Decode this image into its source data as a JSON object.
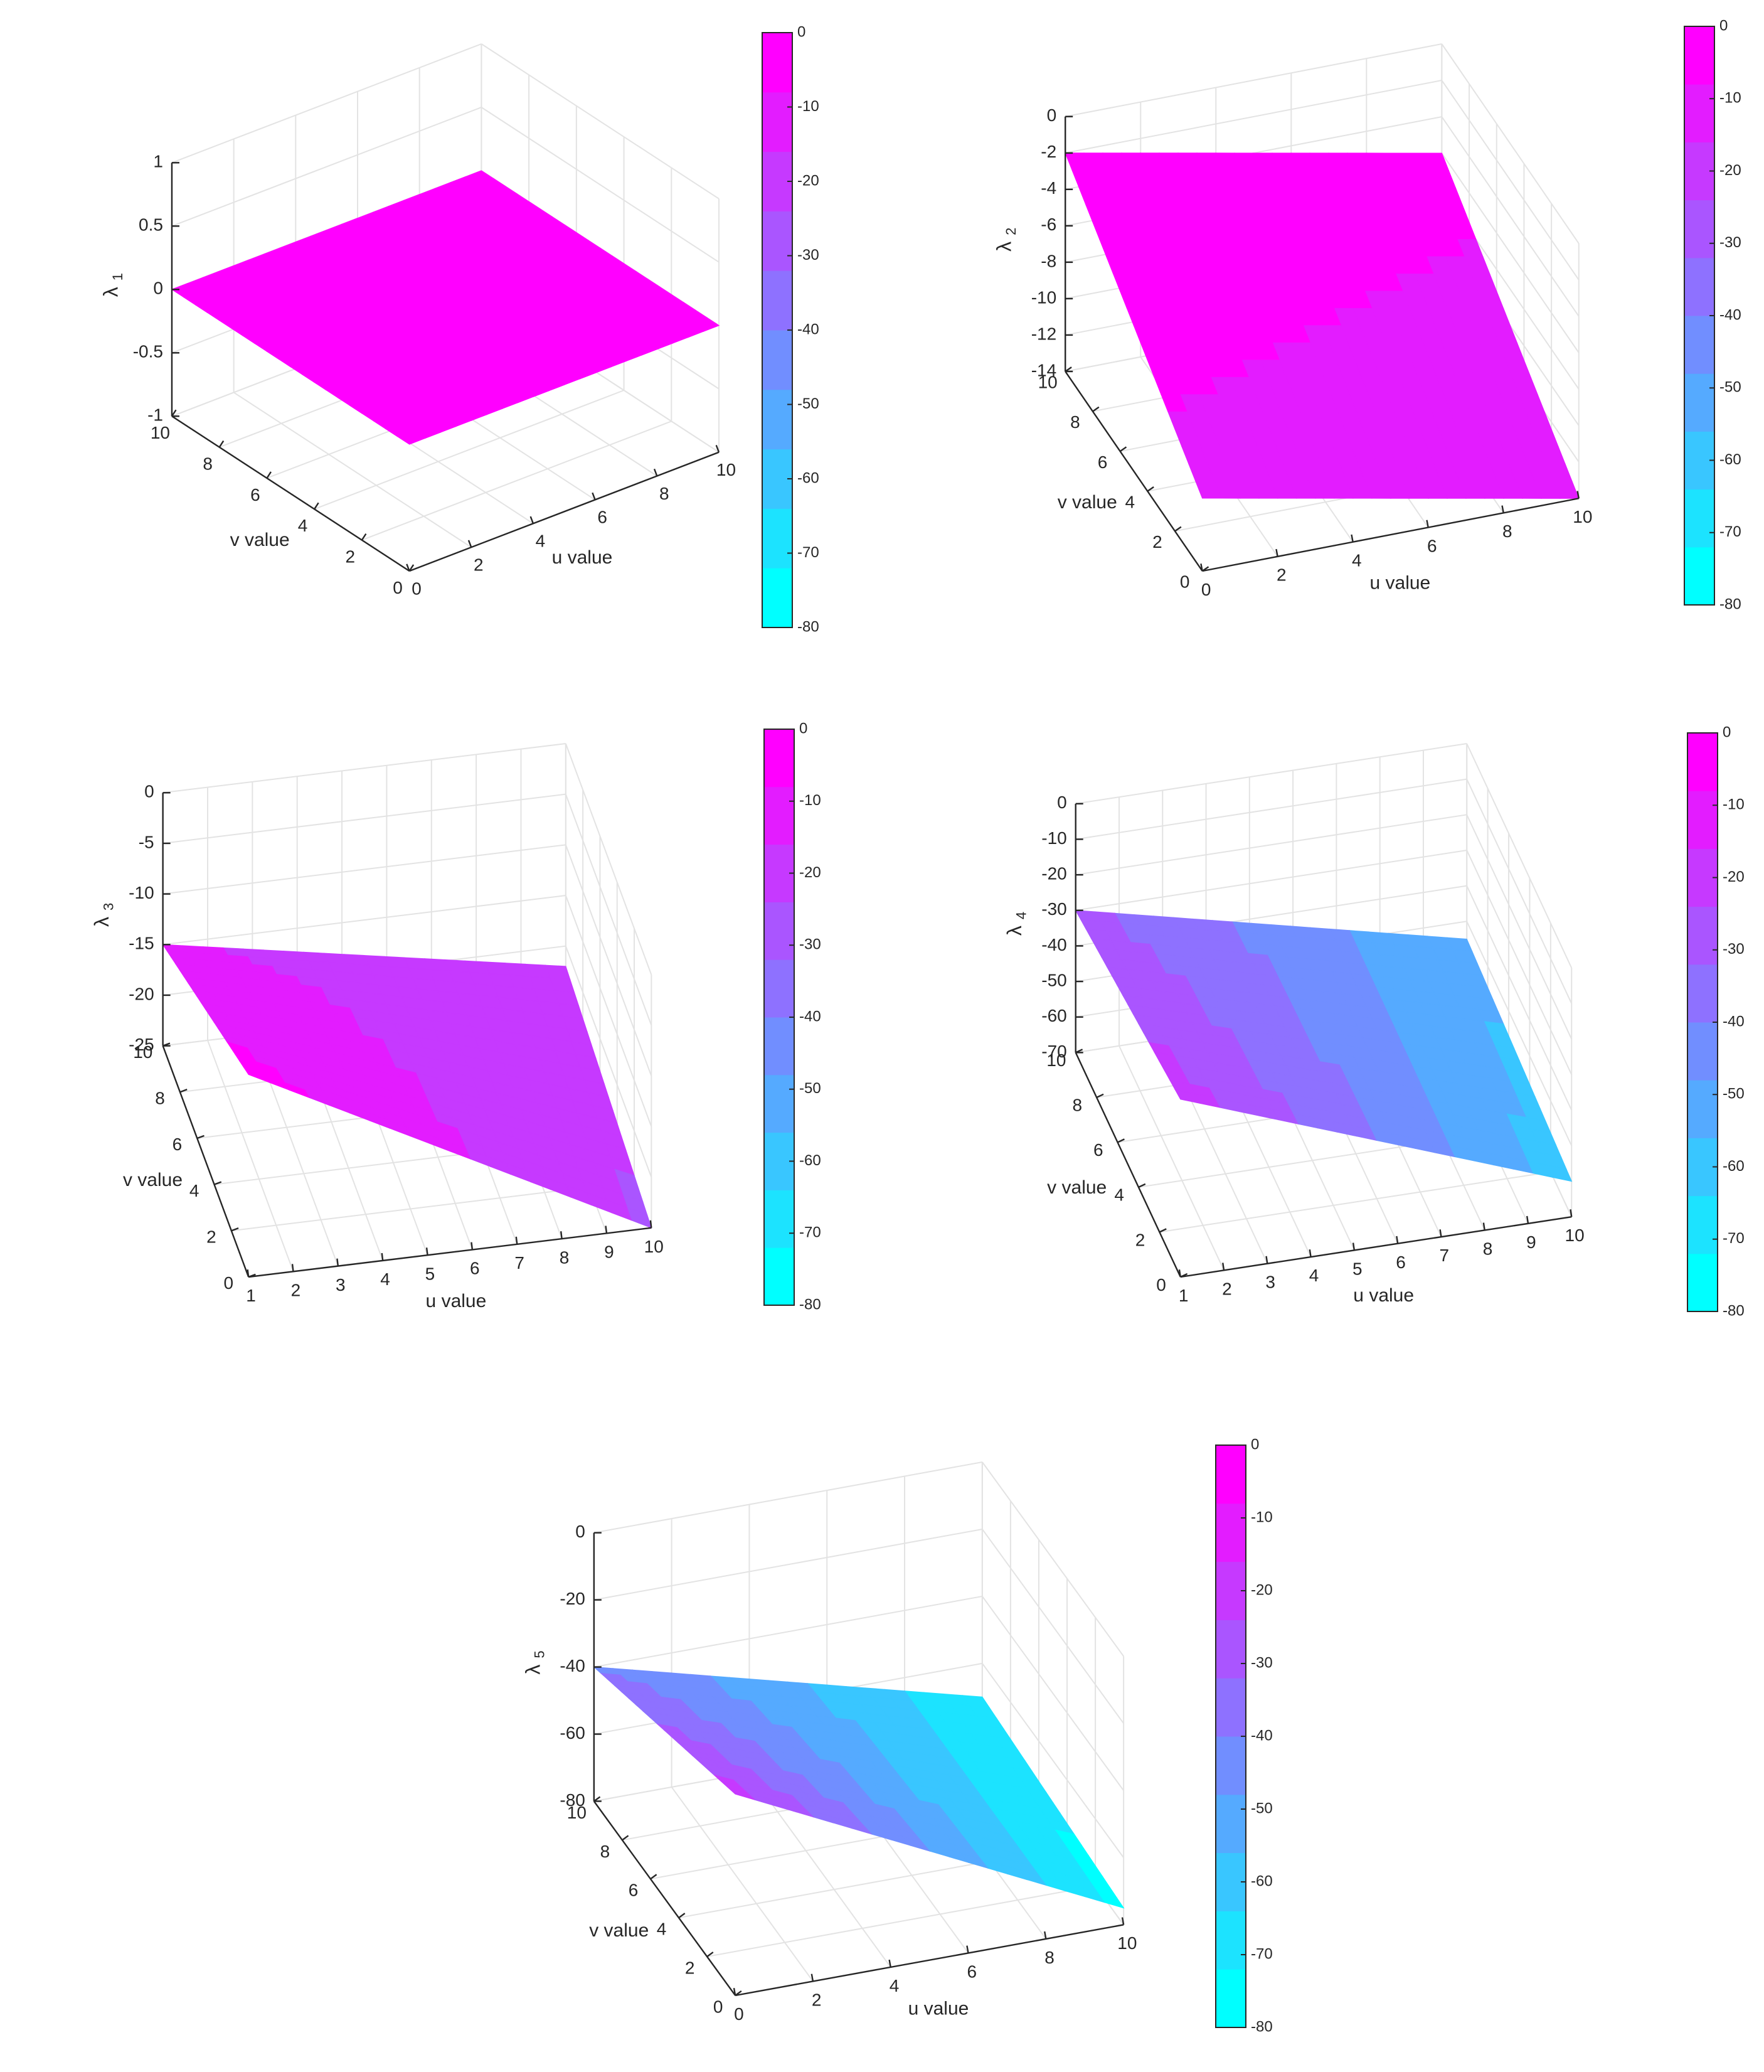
{
  "colormap": {
    "name": "cool",
    "levels": 10,
    "low_color": "#00ffff",
    "high_color": "#ff00ff"
  },
  "chart_data": [
    {
      "id": "p1",
      "type": "surface",
      "zlabel_main": "λ",
      "zlabel_sub": "1",
      "xlabel": "u value",
      "ylabel": "v value",
      "xlim": [
        0,
        10
      ],
      "ylim": [
        0,
        10
      ],
      "zlim": [
        -1,
        1
      ],
      "xticks": [
        0,
        2,
        4,
        6,
        8,
        10
      ],
      "yticks": [
        0,
        2,
        4,
        6,
        8,
        10
      ],
      "zticks": [
        -1,
        -0.5,
        0,
        0.5,
        1
      ],
      "view": {
        "az": -37.5,
        "el": 30
      },
      "surface": {
        "kind": "plane",
        "z00": 0,
        "z10": 0,
        "z01": 0,
        "z11": 0
      },
      "colorbar": {
        "limits": [
          -80,
          0
        ],
        "ticks": [
          0,
          -10,
          -20,
          -30,
          -40,
          -50,
          -60,
          -70,
          -80
        ]
      }
    },
    {
      "id": "p2",
      "type": "surface",
      "zlabel_main": "λ",
      "zlabel_sub": "2",
      "xlabel": "u value",
      "ylabel": "v value",
      "xlim": [
        0,
        10
      ],
      "ylim": [
        0,
        10
      ],
      "zlim": [
        -14,
        0
      ],
      "xticks": [
        0,
        2,
        4,
        6,
        8,
        10
      ],
      "yticks": [
        0,
        2,
        4,
        6,
        8,
        10
      ],
      "zticks": [
        -14,
        -12,
        -10,
        -8,
        -6,
        -4,
        -2,
        0
      ],
      "view": {
        "az": -20,
        "el": 32
      },
      "surface": {
        "kind": "plane",
        "z00": -10,
        "z10": -14,
        "z01": -2,
        "z11": -6
      },
      "colorbar": {
        "limits": [
          -80,
          0
        ],
        "ticks": [
          0,
          -10,
          -20,
          -30,
          -40,
          -50,
          -60,
          -70,
          -80
        ]
      }
    },
    {
      "id": "p3",
      "type": "surface",
      "zlabel_main": "λ",
      "zlabel_sub": "3",
      "xlabel": "u value",
      "ylabel": "v value",
      "xlim": [
        1,
        10
      ],
      "ylim": [
        0,
        10
      ],
      "zlim": [
        -25,
        0
      ],
      "xticks": [
        1,
        2,
        3,
        4,
        5,
        6,
        7,
        8,
        9,
        10
      ],
      "yticks": [
        0,
        2,
        4,
        6,
        8,
        10
      ],
      "zticks": [
        -25,
        -20,
        -15,
        -10,
        -5,
        0
      ],
      "view": {
        "az": -12,
        "el": 35
      },
      "surface": {
        "kind": "plane",
        "z00": -5,
        "z10": -25,
        "z01": -15,
        "z11": -22
      },
      "colorbar": {
        "limits": [
          -80,
          0
        ],
        "ticks": [
          0,
          -10,
          -20,
          -30,
          -40,
          -50,
          -60,
          -70,
          -80
        ]
      }
    },
    {
      "id": "p4",
      "type": "surface",
      "zlabel_main": "λ",
      "zlabel_sub": "4",
      "xlabel": "u value",
      "ylabel": "v value",
      "xlim": [
        1,
        10
      ],
      "ylim": [
        0,
        10
      ],
      "zlim": [
        -70,
        0
      ],
      "xticks": [
        1,
        2,
        3,
        4,
        5,
        6,
        7,
        8,
        9,
        10
      ],
      "yticks": [
        0,
        2,
        4,
        6,
        8,
        10
      ],
      "zticks": [
        -70,
        -60,
        -50,
        -40,
        -30,
        -20,
        -10,
        0
      ],
      "view": {
        "az": -15,
        "el": 35
      },
      "surface": {
        "kind": "plane",
        "z00": -20,
        "z10": -60,
        "z01": -30,
        "z11": -55
      },
      "colorbar": {
        "limits": [
          -80,
          0
        ],
        "ticks": [
          0,
          -10,
          -20,
          -30,
          -40,
          -50,
          -60,
          -70,
          -80
        ]
      }
    },
    {
      "id": "p5",
      "type": "surface",
      "zlabel_main": "λ",
      "zlabel_sub": "5",
      "xlabel": "u value",
      "ylabel": "v value",
      "xlim": [
        0,
        10
      ],
      "ylim": [
        0,
        10
      ],
      "zlim": [
        -80,
        0
      ],
      "xticks": [
        0,
        2,
        4,
        6,
        8,
        10
      ],
      "yticks": [
        0,
        2,
        4,
        6,
        8,
        10
      ],
      "zticks": [
        -80,
        -60,
        -40,
        -20,
        0
      ],
      "view": {
        "az": -20,
        "el": 30
      },
      "surface": {
        "kind": "plane",
        "z00": -20,
        "z10": -75,
        "z01": -40,
        "z11": -70
      },
      "colorbar": {
        "limits": [
          -80,
          0
        ],
        "ticks": [
          0,
          -10,
          -20,
          -30,
          -40,
          -50,
          -60,
          -70,
          -80
        ]
      }
    }
  ]
}
